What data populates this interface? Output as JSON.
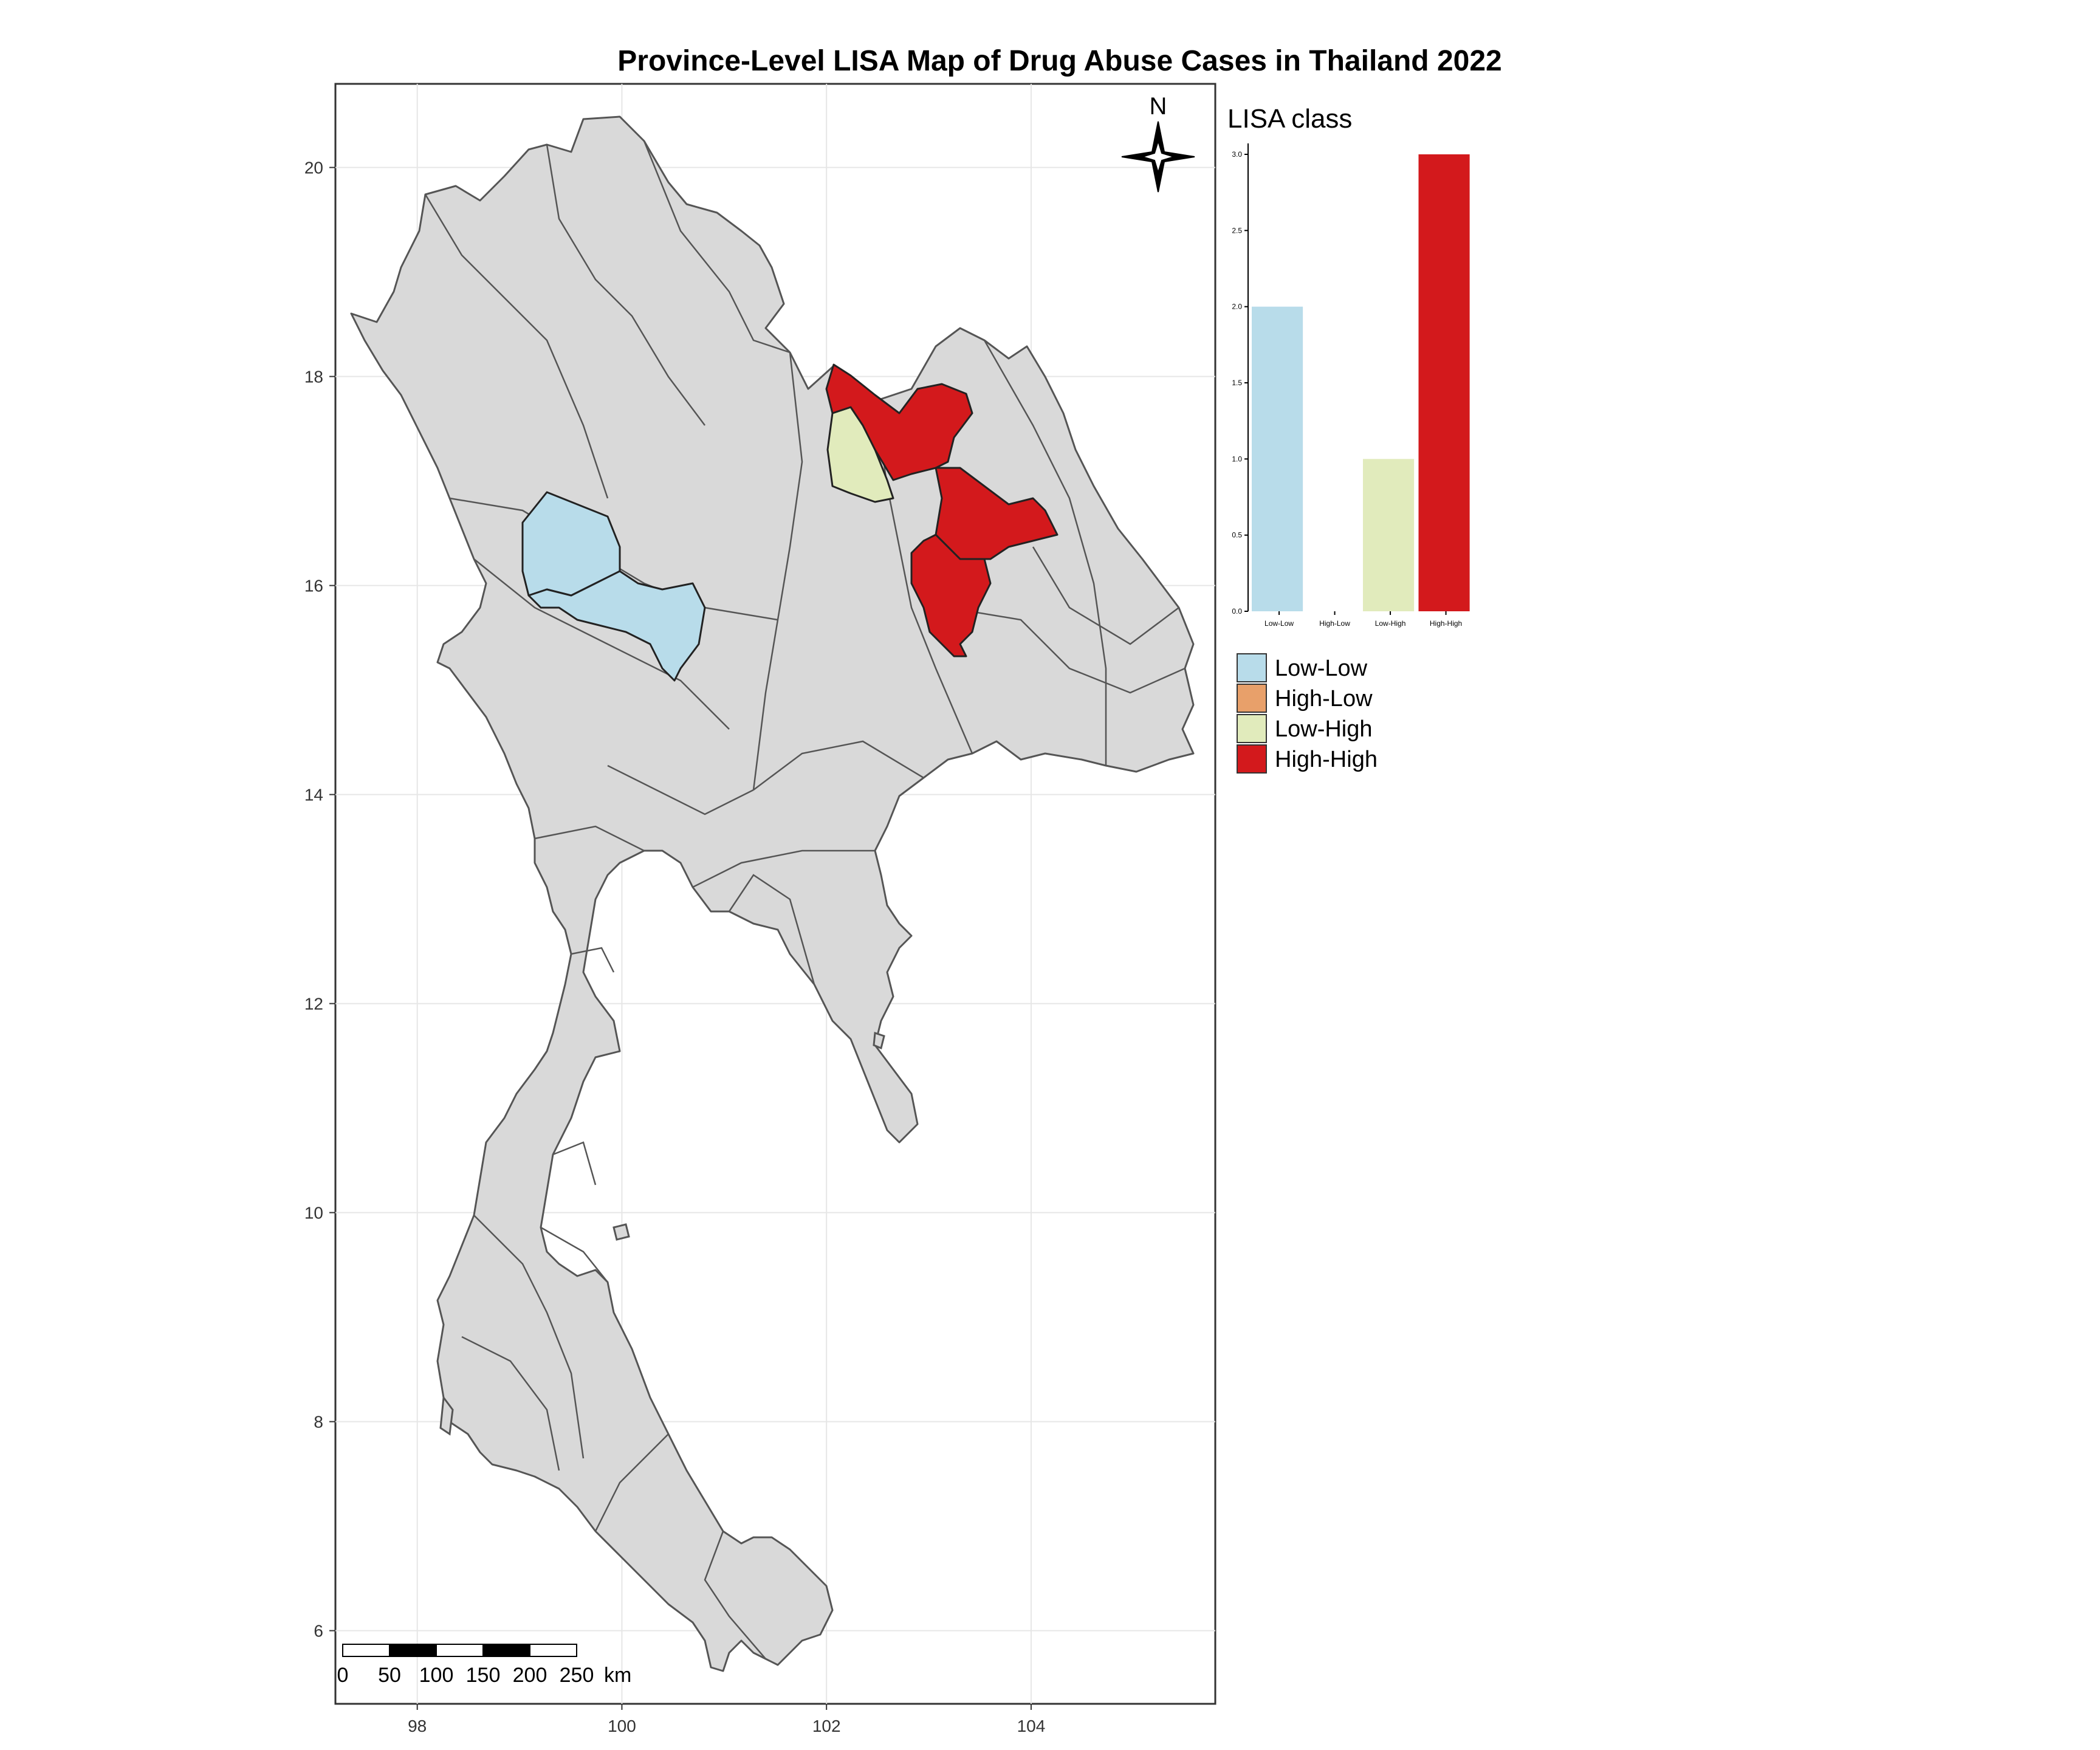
{
  "title": "Province-Level LISA Map of Drug Abuse Cases in Thailand 2022",
  "map": {
    "lon_ticks": [
      "98",
      "100",
      "102",
      "104"
    ],
    "lat_ticks": [
      "20",
      "18",
      "16",
      "14",
      "12",
      "10",
      "8",
      "6"
    ],
    "lon_range": [
      97.2,
      105.8
    ],
    "lat_range": [
      5.3,
      20.8
    ],
    "base_fill": "#d9d9d9",
    "border_color": "#555555",
    "grid": true
  },
  "north_arrow": {
    "label": "N"
  },
  "scale_bar": {
    "labels": [
      "0",
      "50",
      "100",
      "150",
      "200",
      "250"
    ],
    "unit": "km"
  },
  "legend": {
    "title": "LISA class",
    "items": [
      {
        "label": "Low-Low",
        "color": "#b8dcea"
      },
      {
        "label": "High-Low",
        "color": "#e8a06a"
      },
      {
        "label": "Low-High",
        "color": "#e1ebbc"
      },
      {
        "label": "High-High",
        "color": "#d3191c"
      }
    ]
  },
  "chart_data": {
    "type": "bar",
    "categories": [
      "Low-Low",
      "High-Low",
      "Low-High",
      "High-High"
    ],
    "values": [
      2,
      0,
      1,
      3
    ],
    "colors": [
      "#b8dcea",
      "#e8a06a",
      "#e1ebbc",
      "#d3191c"
    ],
    "y_ticks": [
      "0.0",
      "0.5",
      "1.0",
      "1.5",
      "2.0",
      "2.5",
      "3.0"
    ],
    "ylim": [
      0,
      3
    ],
    "title": "",
    "xlabel": "",
    "ylabel": ""
  }
}
